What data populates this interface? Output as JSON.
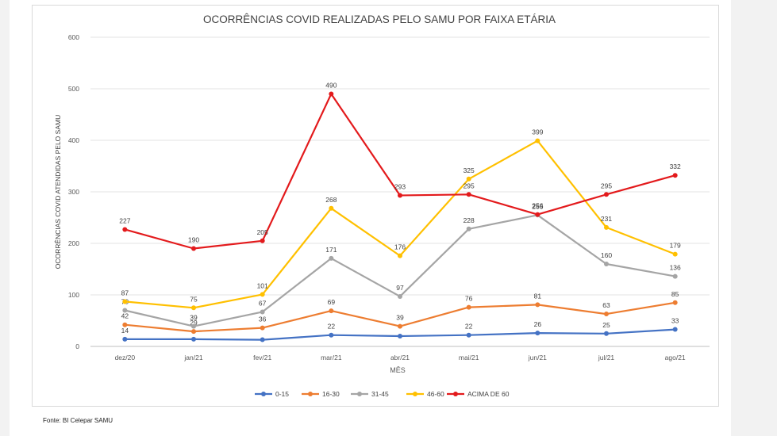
{
  "footer": {
    "source": "Fonte: BI Celepar SAMU"
  },
  "chart_data": {
    "type": "line",
    "title": "OCORRÊNCIAS COVID REALIZADAS PELO SAMU POR FAIXA ETÁRIA",
    "xlabel": "MÊS",
    "ylabel": "OCORRÊNCIAS COVID ATENDIDAS PELO SAMU",
    "ylim": [
      0,
      600
    ],
    "yticks": [
      0,
      100,
      200,
      300,
      400,
      500,
      600
    ],
    "grid": true,
    "legend_position": "bottom",
    "categories": [
      "dez/20",
      "jan/21",
      "fev/21",
      "mar/21",
      "abr/21",
      "mai/21",
      "jun/21",
      "jul/21",
      "ago/21"
    ],
    "series": [
      {
        "name": "0-15",
        "color": "#4472c4",
        "values": [
          14,
          14,
          13,
          22,
          20,
          22,
          26,
          25,
          33
        ]
      },
      {
        "name": "16-30",
        "color": "#ed7d31",
        "values": [
          42,
          29,
          36,
          69,
          39,
          76,
          81,
          63,
          85
        ]
      },
      {
        "name": "31-45",
        "color": "#a5a5a5",
        "values": [
          70,
          39,
          67,
          171,
          97,
          228,
          255,
          160,
          136
        ]
      },
      {
        "name": "46-60",
        "color": "#ffc000",
        "values": [
          87,
          75,
          101,
          268,
          176,
          325,
          399,
          231,
          179
        ]
      },
      {
        "name": "ACIMA DE 60",
        "color": "#e31a1c",
        "values": [
          227,
          190,
          205,
          490,
          293,
          295,
          256,
          295,
          332
        ]
      }
    ],
    "data_labels_shown": [
      [
        "14",
        "",
        "",
        "22",
        "",
        "22",
        "26",
        "25",
        "33"
      ],
      [
        "42",
        "29",
        "36",
        "69",
        "39",
        "76",
        "81",
        "63",
        "85"
      ],
      [
        "70",
        "39",
        "67",
        "171",
        "97",
        "228",
        "255",
        "160",
        "136"
      ],
      [
        "87",
        "75",
        "101",
        "268",
        "176",
        "325",
        "399",
        "231",
        "179"
      ],
      [
        "227",
        "190",
        "205",
        "490",
        "293",
        "295",
        "256",
        "295",
        "332"
      ]
    ]
  }
}
